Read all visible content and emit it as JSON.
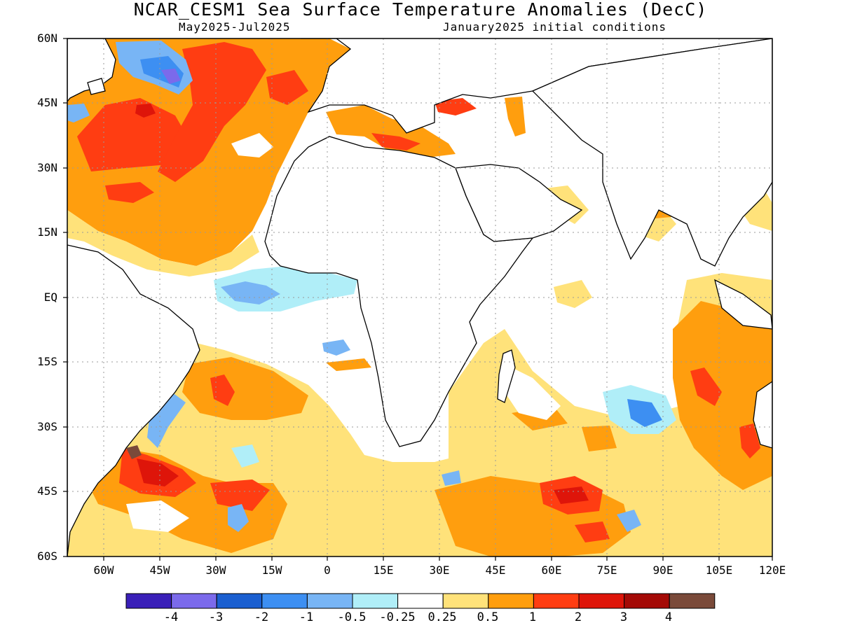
{
  "title": "NCAR_CESM1 Sea Surface Temperature Anomalies (DecC)",
  "subtitle_left": "May2025-Jul2025",
  "subtitle_right": "January2025 initial conditions",
  "lat_labels": [
    "60N",
    "45N",
    "30N",
    "15N",
    "EQ",
    "15S",
    "30S",
    "45S",
    "60S"
  ],
  "lon_labels": [
    "60W",
    "45W",
    "30W",
    "15W",
    "0",
    "15E",
    "30E",
    "45E",
    "60E",
    "75E",
    "90E",
    "105E",
    "120E"
  ],
  "colorbar": {
    "colors": [
      "#3a1fb8",
      "#7b6aeb",
      "#1b5fd0",
      "#3d8ff2",
      "#78b5f5",
      "#b0eef8",
      "#ffffff",
      "#ffe27a",
      "#ff9e0e",
      "#ff3d12",
      "#de150a",
      "#a40a06",
      "#7a4a3a"
    ],
    "labels": [
      "-4",
      "-3",
      "-2",
      "-1",
      "-0.5",
      "-0.25",
      "0.25",
      "0.5",
      "1",
      "2",
      "3",
      "4"
    ]
  }
}
